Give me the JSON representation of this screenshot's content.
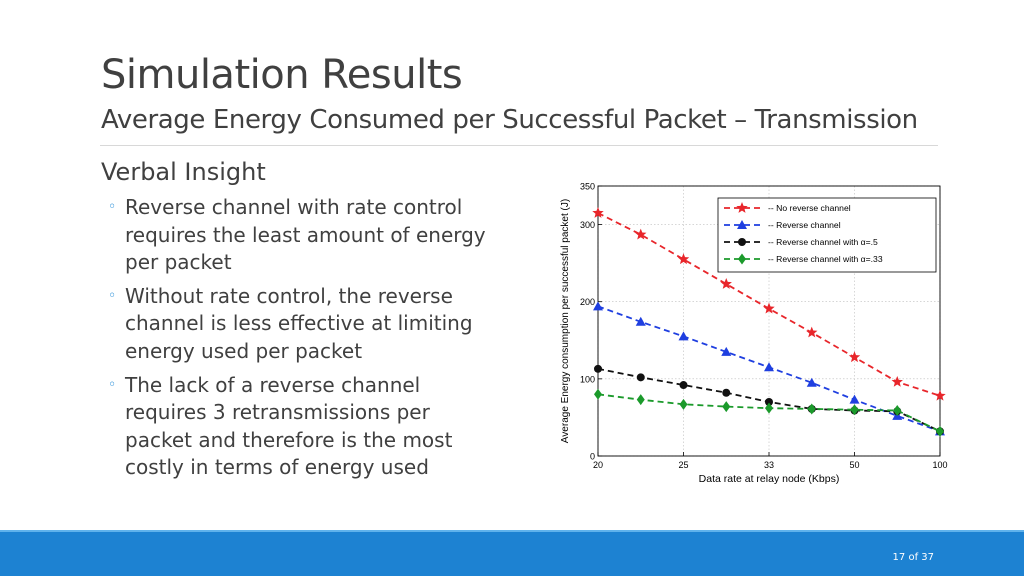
{
  "slide": {
    "title": "Simulation Results",
    "subtitle": "Average Energy Consumed per Successful Packet – Transmission",
    "insight_heading": "Verbal Insight",
    "bullets": [
      "Reverse channel with rate control requires the least amount of energy per packet",
      "Without rate control, the reverse channel is less effective at limiting energy used per packet",
      "The lack of a reverse channel requires 3 retransmissions per packet and therefore is the most costly in terms of energy used"
    ],
    "bullet_marker": "◦",
    "page_number": "17 of 37"
  },
  "colors": {
    "text": "#404040",
    "accent": "#1f8ad8",
    "footer": "#1d82d2"
  },
  "chart_data": {
    "type": "line",
    "xlabel": "Data rate at relay node (Kbps)",
    "ylabel": "Average Energy consumption per successful packet (J)",
    "categories": [
      "20",
      "",
      "25",
      "",
      "33",
      "",
      "50",
      "",
      "100"
    ],
    "x_tick_labels": [
      "20",
      "25",
      "33",
      "50",
      "100"
    ],
    "y_ticks": [
      0,
      100,
      200,
      300,
      350
    ],
    "ylim": [
      0,
      350
    ],
    "grid": true,
    "legend_position": "top-right",
    "series": [
      {
        "name": "-- No reverse channel",
        "color": "#e8262b",
        "marker": "star",
        "values": [
          315,
          287,
          255,
          223,
          191,
          160,
          128,
          96,
          78
        ]
      },
      {
        "name": "-- Reverse channel",
        "color": "#1f3fe0",
        "marker": "triangle",
        "values": [
          194,
          174,
          155,
          135,
          115,
          95,
          73,
          52,
          32
        ]
      },
      {
        "name": "-- Reverse channel with α=.5",
        "color": "#111111",
        "marker": "circle",
        "values": [
          113,
          102,
          92,
          82,
          70,
          61,
          59,
          58,
          32
        ]
      },
      {
        "name": "-- Reverse channel with α=.33",
        "color": "#1b9a2b",
        "marker": "diamond",
        "values": [
          80,
          73,
          67,
          64,
          62,
          61,
          60,
          59,
          32
        ]
      }
    ]
  }
}
